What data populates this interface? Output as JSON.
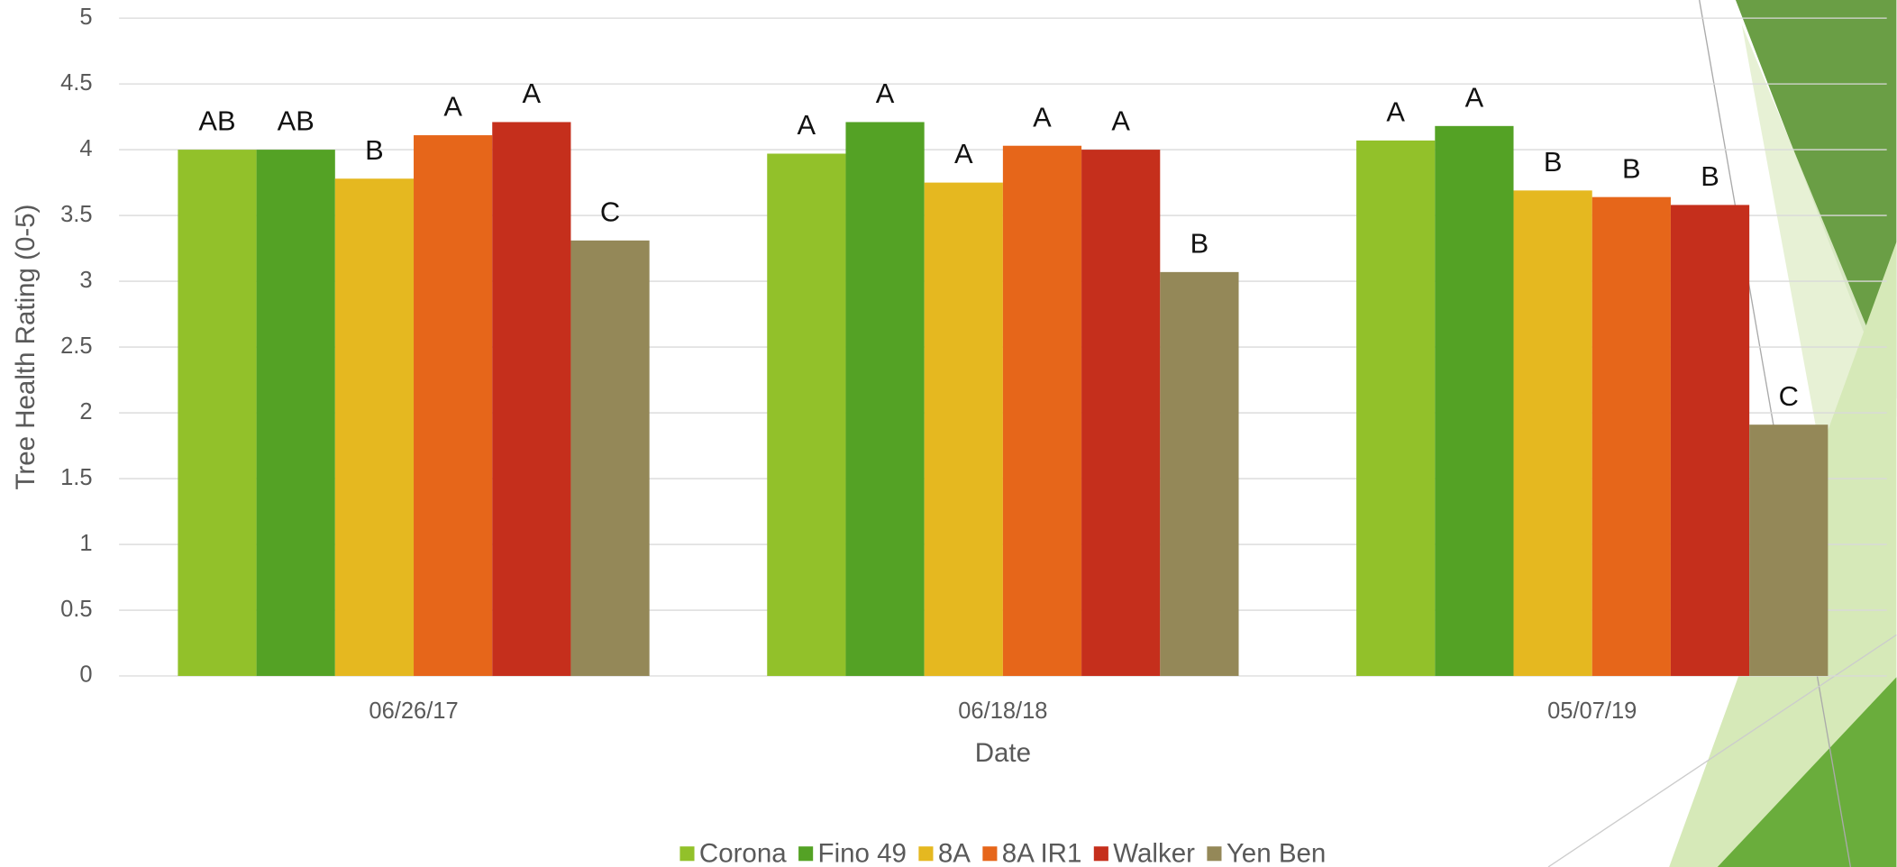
{
  "chart_data": {
    "type": "bar",
    "x_label": "Date",
    "y_label": "Tree Health Rating (0-5)",
    "categories": [
      "06/26/17",
      "06/18/18",
      "05/07/19"
    ],
    "series": [
      {
        "name": "Corona",
        "color": "#92c12a",
        "values": [
          4.0,
          3.97,
          4.07
        ],
        "letters": [
          "AB",
          "A",
          "A"
        ]
      },
      {
        "name": "Fino 49",
        "color": "#54a225",
        "values": [
          4.0,
          4.21,
          4.18
        ],
        "letters": [
          "AB",
          "A",
          "A"
        ]
      },
      {
        "name": "8A",
        "color": "#e5b820",
        "values": [
          3.78,
          3.75,
          3.69
        ],
        "letters": [
          "B",
          "A",
          "B"
        ]
      },
      {
        "name": "8A IR1",
        "color": "#e6661a",
        "values": [
          4.11,
          4.03,
          3.64
        ],
        "letters": [
          "A",
          "A",
          "B"
        ]
      },
      {
        "name": "Walker",
        "color": "#c52f1c",
        "values": [
          4.21,
          4.0,
          3.58
        ],
        "letters": [
          "A",
          "A",
          "B"
        ]
      },
      {
        "name": "Yen Ben",
        "color": "#948858",
        "values": [
          3.31,
          3.07,
          1.91
        ],
        "letters": [
          "C",
          "B",
          "C"
        ]
      }
    ],
    "ylim": [
      0,
      5
    ],
    "yticks": [
      0,
      0.5,
      1,
      1.5,
      2,
      2.5,
      3,
      3.5,
      4,
      4.5,
      5
    ],
    "grid": true,
    "legend": "bottom"
  }
}
